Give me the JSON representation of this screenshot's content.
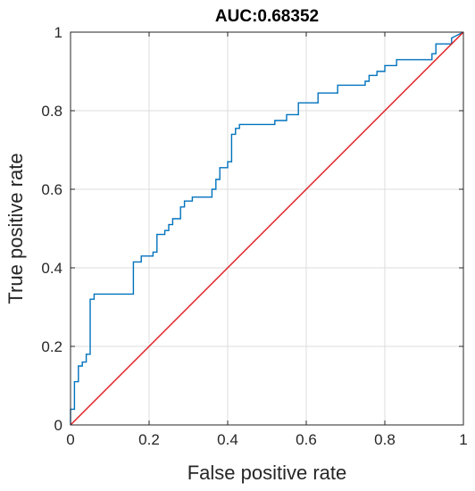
{
  "chart_data": {
    "type": "line",
    "title": "AUC:0.68352",
    "xlabel": "False positive rate",
    "ylabel": "True positive rate",
    "xlim": [
      0,
      1
    ],
    "ylim": [
      0,
      1
    ],
    "grid": true,
    "xticks": [
      "0",
      "0.2",
      "0.4",
      "0.6",
      "0.8",
      "1"
    ],
    "yticks": [
      "0",
      "0.2",
      "0.4",
      "0.6",
      "0.8",
      "1"
    ],
    "colors": {
      "roc": "#0072bd",
      "diagonal": "#e41a1c",
      "grid": "#dcdcdc",
      "axis": "#262626"
    },
    "series": [
      {
        "x": [
          0,
          0,
          0.01,
          0.01,
          0.02,
          0.02,
          0.03,
          0.03,
          0.04,
          0.04,
          0.05,
          0.05,
          0.06,
          0.06,
          0.16,
          0.16,
          0.18,
          0.18,
          0.21,
          0.21,
          0.22,
          0.22,
          0.24,
          0.24,
          0.25,
          0.25,
          0.26,
          0.26,
          0.28,
          0.28,
          0.29,
          0.29,
          0.31,
          0.31,
          0.36,
          0.36,
          0.37,
          0.37,
          0.38,
          0.38,
          0.4,
          0.4,
          0.41,
          0.41,
          0.42,
          0.42,
          0.43,
          0.43,
          0.52,
          0.52,
          0.55,
          0.55,
          0.58,
          0.58,
          0.63,
          0.63,
          0.68,
          0.68,
          0.75,
          0.75,
          0.76,
          0.76,
          0.78,
          0.78,
          0.8,
          0.8,
          0.83,
          0.83,
          0.92,
          0.92,
          0.93,
          0.93,
          0.97,
          0.97,
          1.0
        ],
        "y": [
          0,
          0.04,
          0.04,
          0.11,
          0.11,
          0.15,
          0.15,
          0.16,
          0.16,
          0.18,
          0.18,
          0.32,
          0.32,
          0.333,
          0.333,
          0.415,
          0.415,
          0.43,
          0.43,
          0.44,
          0.44,
          0.485,
          0.485,
          0.495,
          0.495,
          0.51,
          0.51,
          0.525,
          0.525,
          0.555,
          0.555,
          0.57,
          0.57,
          0.58,
          0.58,
          0.6,
          0.6,
          0.625,
          0.625,
          0.655,
          0.655,
          0.67,
          0.67,
          0.74,
          0.74,
          0.755,
          0.755,
          0.765,
          0.765,
          0.775,
          0.775,
          0.79,
          0.79,
          0.82,
          0.82,
          0.845,
          0.845,
          0.865,
          0.865,
          0.875,
          0.875,
          0.89,
          0.89,
          0.9,
          0.9,
          0.915,
          0.915,
          0.93,
          0.93,
          0.945,
          0.945,
          0.97,
          0.97,
          0.985,
          1.0
        ]
      },
      {
        "x": [
          0,
          1
        ],
        "y": [
          0,
          1
        ]
      }
    ]
  }
}
